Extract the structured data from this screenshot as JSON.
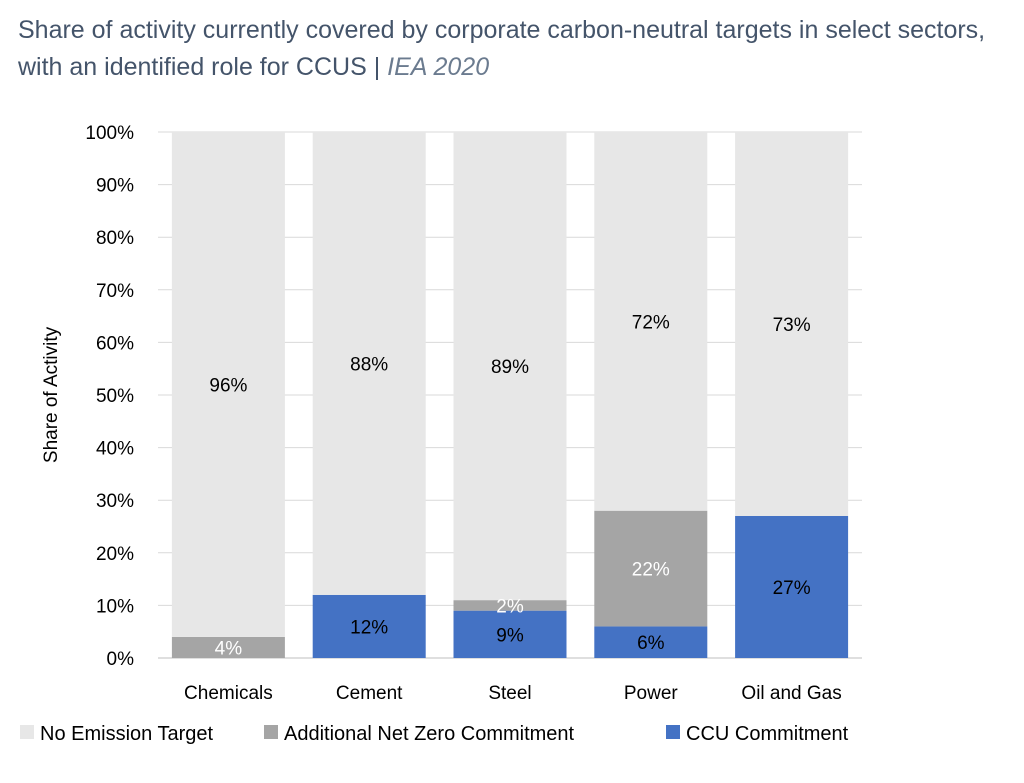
{
  "header": {
    "title": "Share of activity currently covered by corporate carbon-neutral targets in select sectors, with an identified role for CCUS",
    "separator": " | ",
    "source": "IEA 2020"
  },
  "colors": {
    "no_target": "#e7e7e7",
    "additional": "#a5a5a5",
    "ccu": "#4472c4",
    "grid": "#d9d9d9",
    "axis": "#bfbfbf"
  },
  "chart_data": {
    "type": "bar",
    "stacked": true,
    "title": "Share of activity currently covered by corporate carbon-neutral targets in select sectors, with an identified role for CCUS",
    "xlabel": "",
    "ylabel": "Share of Activity",
    "ylim": [
      0,
      100
    ],
    "yticks": [
      "0%",
      "10%",
      "20%",
      "30%",
      "40%",
      "50%",
      "60%",
      "70%",
      "80%",
      "90%",
      "100%"
    ],
    "categories": [
      "Chemicals",
      "Cement",
      "Steel",
      "Power",
      "Oil and Gas"
    ],
    "grid": true,
    "legend_position": "bottom",
    "series": [
      {
        "name": "CCU Commitment",
        "values": [
          0,
          12,
          9,
          6,
          27
        ],
        "labels": [
          "",
          "12%",
          "9%",
          "6%",
          "27%"
        ]
      },
      {
        "name": "Additional Net Zero Commitment",
        "values": [
          4,
          0,
          2,
          22,
          0
        ],
        "labels": [
          "4%",
          "",
          "2%",
          "22%",
          ""
        ]
      },
      {
        "name": "No Emission Target",
        "values": [
          96,
          88,
          89,
          72,
          73
        ],
        "labels": [
          "96%",
          "88%",
          "89%",
          "72%",
          "73%"
        ]
      }
    ],
    "legend": [
      "No Emission Target",
      "Additional Net Zero Commitment",
      "CCU Commitment"
    ]
  }
}
